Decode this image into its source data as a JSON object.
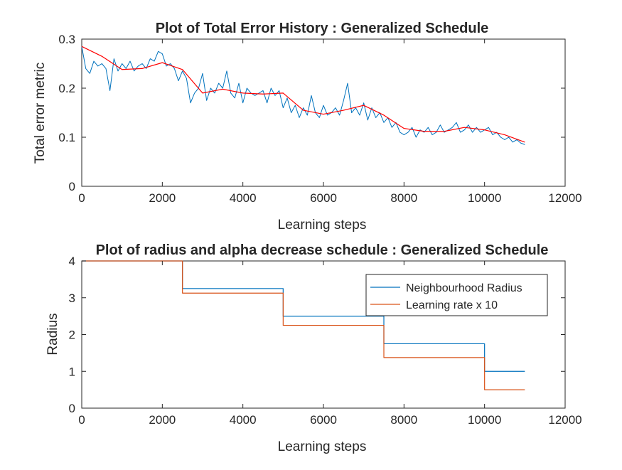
{
  "chart_data": [
    {
      "type": "line",
      "title": "Plot of Total Error History : Generalized Schedule",
      "xlabel": "Learning steps",
      "ylabel": "Total error metric",
      "xlim": [
        0,
        12000
      ],
      "ylim": [
        0,
        0.3
      ],
      "xticks": [
        0,
        2000,
        4000,
        6000,
        8000,
        10000,
        12000
      ],
      "yticks": [
        0,
        0.1,
        0.2,
        0.3
      ],
      "xtick_labels": [
        "0",
        "2000",
        "4000",
        "6000",
        "8000",
        "10000",
        "12000"
      ],
      "ytick_labels": [
        "0",
        "0.1",
        "0.2",
        "0.3"
      ],
      "grid": false,
      "series": [
        {
          "color": "#0072BD",
          "style": "noisy",
          "x": [
            0,
            100,
            200,
            300,
            400,
            500,
            600,
            700,
            800,
            900,
            1000,
            1100,
            1200,
            1300,
            1400,
            1500,
            1600,
            1700,
            1800,
            1900,
            2000,
            2100,
            2200,
            2300,
            2400,
            2500,
            2600,
            2700,
            2800,
            2900,
            3000,
            3100,
            3200,
            3300,
            3400,
            3500,
            3600,
            3700,
            3800,
            3900,
            4000,
            4100,
            4200,
            4300,
            4400,
            4500,
            4600,
            4700,
            4800,
            4900,
            5000,
            5100,
            5200,
            5300,
            5400,
            5500,
            5600,
            5700,
            5800,
            5900,
            6000,
            6100,
            6200,
            6300,
            6400,
            6500,
            6600,
            6700,
            6800,
            6900,
            7000,
            7100,
            7200,
            7300,
            7400,
            7500,
            7600,
            7700,
            7800,
            7900,
            8000,
            8100,
            8200,
            8300,
            8400,
            8500,
            8600,
            8700,
            8800,
            8900,
            9000,
            9100,
            9200,
            9300,
            9400,
            9500,
            9600,
            9700,
            9800,
            9900,
            10000,
            10100,
            10200,
            10300,
            10400,
            10500,
            10600,
            10700,
            10800,
            10900,
            11000
          ],
          "y": [
            0.285,
            0.24,
            0.23,
            0.255,
            0.245,
            0.25,
            0.24,
            0.195,
            0.26,
            0.235,
            0.25,
            0.24,
            0.255,
            0.235,
            0.245,
            0.25,
            0.24,
            0.26,
            0.255,
            0.275,
            0.27,
            0.245,
            0.25,
            0.24,
            0.215,
            0.235,
            0.22,
            0.17,
            0.19,
            0.2,
            0.23,
            0.175,
            0.2,
            0.19,
            0.21,
            0.2,
            0.235,
            0.19,
            0.18,
            0.21,
            0.17,
            0.2,
            0.19,
            0.185,
            0.19,
            0.195,
            0.17,
            0.2,
            0.185,
            0.195,
            0.16,
            0.18,
            0.15,
            0.165,
            0.14,
            0.16,
            0.145,
            0.185,
            0.15,
            0.14,
            0.165,
            0.145,
            0.15,
            0.16,
            0.145,
            0.175,
            0.21,
            0.15,
            0.16,
            0.145,
            0.17,
            0.135,
            0.16,
            0.14,
            0.15,
            0.13,
            0.14,
            0.12,
            0.13,
            0.11,
            0.105,
            0.11,
            0.12,
            0.1,
            0.115,
            0.11,
            0.12,
            0.105,
            0.11,
            0.125,
            0.11,
            0.115,
            0.12,
            0.13,
            0.11,
            0.115,
            0.125,
            0.11,
            0.12,
            0.11,
            0.115,
            0.12,
            0.105,
            0.11,
            0.1,
            0.095,
            0.1,
            0.09,
            0.095,
            0.088,
            0.085
          ]
        },
        {
          "color": "#FF0000",
          "style": "smooth",
          "x": [
            0,
            500,
            1000,
            1500,
            2000,
            2500,
            3000,
            3500,
            4000,
            4500,
            5000,
            5500,
            6000,
            6500,
            7000,
            7500,
            8000,
            8500,
            9000,
            9500,
            10000,
            10500,
            11000
          ],
          "y": [
            0.285,
            0.265,
            0.238,
            0.24,
            0.252,
            0.238,
            0.19,
            0.198,
            0.19,
            0.188,
            0.19,
            0.155,
            0.147,
            0.155,
            0.165,
            0.145,
            0.118,
            0.112,
            0.112,
            0.12,
            0.115,
            0.105,
            0.09
          ]
        }
      ]
    },
    {
      "type": "line",
      "title": "Plot of radius and alpha decrease schedule : Generalized Schedule",
      "xlabel": "Learning steps",
      "ylabel": "Radius",
      "xlim": [
        0,
        12000
      ],
      "ylim": [
        0,
        4
      ],
      "xticks": [
        0,
        2000,
        4000,
        6000,
        8000,
        10000,
        12000
      ],
      "yticks": [
        0,
        1,
        2,
        3,
        4
      ],
      "xtick_labels": [
        "0",
        "2000",
        "4000",
        "6000",
        "8000",
        "10000",
        "12000"
      ],
      "ytick_labels": [
        "0",
        "1",
        "2",
        "3",
        "4"
      ],
      "grid": false,
      "legend_position": "top-right",
      "series": [
        {
          "name": "Neighbourhood Radius",
          "color": "#0072BD",
          "style": "step",
          "x": [
            0,
            2500,
            2500,
            5000,
            5000,
            7500,
            7500,
            10000,
            10000,
            11000
          ],
          "y": [
            4,
            4,
            3.25,
            3.25,
            2.5,
            2.5,
            1.75,
            1.75,
            1.0,
            1.0
          ]
        },
        {
          "name": "Learning rate x 10",
          "color": "#D95319",
          "style": "step",
          "x": [
            0,
            2500,
            2500,
            5000,
            5000,
            7500,
            7500,
            10000,
            10000,
            11000
          ],
          "y": [
            4,
            4,
            3.125,
            3.125,
            2.25,
            2.25,
            1.375,
            1.375,
            0.5,
            0.5
          ]
        }
      ]
    }
  ]
}
